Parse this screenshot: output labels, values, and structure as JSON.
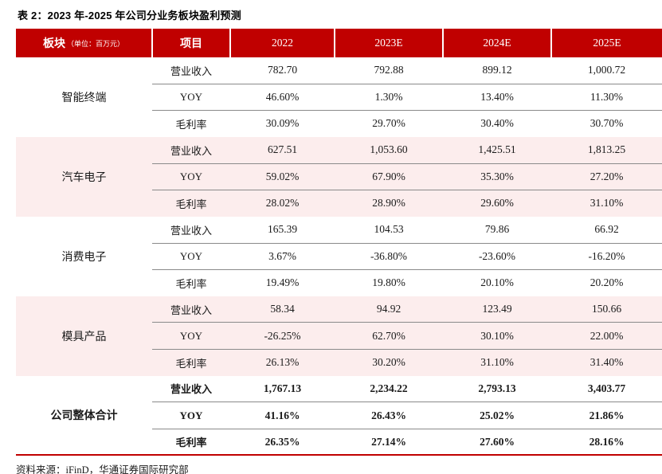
{
  "title": "表 2：2023 年-2025 年公司分业务板块盈利预测",
  "source": "资料来源：iFinD，华通证券国际研究部",
  "colors": {
    "header_bg": "#c00000",
    "header_text": "#ffffff",
    "band_pink": "#fceded",
    "row_line": "#8a8a8a",
    "table_bottom_line": "#c00000"
  },
  "table": {
    "header": {
      "segment": "板块",
      "segment_unit": "（单位：百万元）",
      "item": "项目",
      "years": [
        "2022",
        "2023E",
        "2024E",
        "2025E"
      ]
    },
    "groups": [
      {
        "segment": "智能终端",
        "banded": false,
        "bold": false,
        "rows": [
          {
            "item": "营业收入",
            "values": [
              "782.70",
              "792.88",
              "899.12",
              "1,000.72"
            ]
          },
          {
            "item": "YOY",
            "values": [
              "46.60%",
              "1.30%",
              "13.40%",
              "11.30%"
            ]
          },
          {
            "item": "毛利率",
            "values": [
              "30.09%",
              "29.70%",
              "30.40%",
              "30.70%"
            ]
          }
        ]
      },
      {
        "segment": "汽车电子",
        "banded": true,
        "bold": false,
        "rows": [
          {
            "item": "营业收入",
            "values": [
              "627.51",
              "1,053.60",
              "1,425.51",
              "1,813.25"
            ]
          },
          {
            "item": "YOY",
            "values": [
              "59.02%",
              "67.90%",
              "35.30%",
              "27.20%"
            ]
          },
          {
            "item": "毛利率",
            "values": [
              "28.02%",
              "28.90%",
              "29.60%",
              "31.10%"
            ]
          }
        ]
      },
      {
        "segment": "消费电子",
        "banded": false,
        "bold": false,
        "rows": [
          {
            "item": "营业收入",
            "values": [
              "165.39",
              "104.53",
              "79.86",
              "66.92"
            ]
          },
          {
            "item": "YOY",
            "values": [
              "3.67%",
              "-36.80%",
              "-23.60%",
              "-16.20%"
            ]
          },
          {
            "item": "毛利率",
            "values": [
              "19.49%",
              "19.80%",
              "20.10%",
              "20.20%"
            ]
          }
        ]
      },
      {
        "segment": "模具产品",
        "banded": true,
        "bold": false,
        "rows": [
          {
            "item": "营业收入",
            "values": [
              "58.34",
              "94.92",
              "123.49",
              "150.66"
            ]
          },
          {
            "item": "YOY",
            "values": [
              "-26.25%",
              "62.70%",
              "30.10%",
              "22.00%"
            ]
          },
          {
            "item": "毛利率",
            "values": [
              "26.13%",
              "30.20%",
              "31.10%",
              "31.40%"
            ]
          }
        ]
      },
      {
        "segment": "公司整体合计",
        "banded": false,
        "bold": true,
        "rows": [
          {
            "item": "营业收入",
            "values": [
              "1,767.13",
              "2,234.22",
              "2,793.13",
              "3,403.77"
            ]
          },
          {
            "item": "YOY",
            "values": [
              "41.16%",
              "26.43%",
              "25.02%",
              "21.86%"
            ]
          },
          {
            "item": "毛利率",
            "values": [
              "26.35%",
              "27.14%",
              "27.60%",
              "28.16%"
            ]
          }
        ]
      }
    ]
  }
}
